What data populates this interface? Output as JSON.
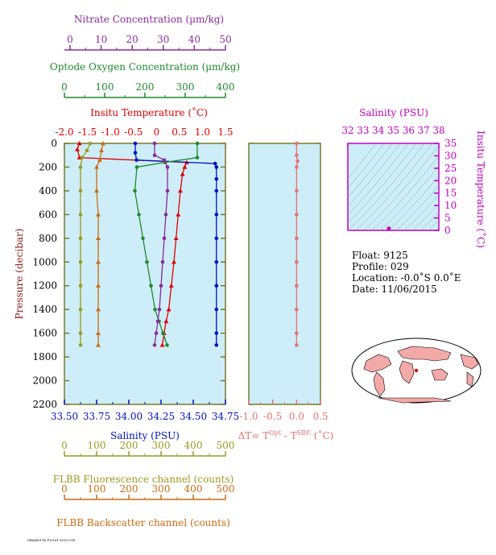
{
  "colors": {
    "nitrate": "#8b2a9c",
    "oxygen": "#1e8a2e",
    "temperature": "#e00000",
    "salinity": "#0010c0",
    "fluorescence": "#9a9a1c",
    "backscatter": "#cc6a10",
    "delta_t": "#e87070",
    "ts_axis": "#c000c0",
    "panel_bg": "#cdeef8",
    "frame": "#7a7a2a"
  },
  "axes": {
    "nitrate": {
      "title": "Nitrate Concentration (µm/kg)",
      "ticks": [
        "0",
        "10",
        "20",
        "30",
        "40",
        "50"
      ]
    },
    "oxygen": {
      "title": "Optode Oxygen Concentration (µm/kg)",
      "ticks": [
        "0",
        "100",
        "200",
        "300",
        "400"
      ]
    },
    "temperature": {
      "title": "Insitu Temperature (˚C)",
      "ticks": [
        "-2.0",
        "-1.5",
        "-1.0",
        "-0.5",
        "0",
        "0.5",
        "1.0",
        "1.5"
      ]
    },
    "salinity": {
      "title": "Salinity (PSU)",
      "ticks": [
        "33.50",
        "33.75",
        "34.00",
        "34.25",
        "34.50",
        "34.75"
      ]
    },
    "fluorescence": {
      "title": "FLBB Fluorescence channel (counts)",
      "ticks": [
        "0",
        "100",
        "200",
        "300",
        "400",
        "500"
      ]
    },
    "backscatter": {
      "title": "FLBB Backscatter channel (counts)",
      "ticks": [
        "0",
        "100",
        "200",
        "300",
        "400",
        "500"
      ]
    },
    "pressure": {
      "title": "Pressure (decibar)",
      "ticks": [
        "0",
        "200",
        "400",
        "600",
        "800",
        "1000",
        "1200",
        "1400",
        "1600",
        "1800",
        "2000",
        "2200"
      ]
    },
    "delta_t": {
      "title_main": "ΔT= T",
      "title_sup1": "Opt",
      "title_mid": " - T",
      "title_sup2": "SBE",
      "title_end": " (˚C)",
      "ticks": [
        "-1.0",
        "-0.5",
        "0.0",
        "0.5"
      ]
    },
    "ts_salinity": {
      "title": "Salinity (PSU)",
      "ticks": [
        "32",
        "33",
        "34",
        "35",
        "36",
        "37",
        "38"
      ]
    },
    "ts_temperature": {
      "title": "Insitu Temperature (˚C)",
      "ticks": [
        "0",
        "5",
        "10",
        "15",
        "20",
        "25",
        "30",
        "35"
      ]
    }
  },
  "info": {
    "float": "Float:  9125",
    "profile": "Profile:  029",
    "location": "Location:  -0.0˚S   0.0˚E",
    "date": "Date:  11/06/2015"
  },
  "footer": "MBARI/UW FLOAT SOCCOM",
  "chart_data": [
    {
      "type": "line",
      "title": "",
      "ylabel": "Pressure (decibar)",
      "ylim": [
        2200,
        0
      ],
      "series": [
        {
          "name": "Insitu Temperature (˚C)",
          "xlim": [
            -2.25,
            1.5
          ],
          "x": [
            -1.9,
            -1.95,
            -1.9,
            0.6,
            0.55,
            0.5,
            0.45,
            0.4,
            0.35,
            0.3,
            0.24,
            0.18,
            0.12,
            0.07,
            0.03
          ],
          "y": [
            0,
            50,
            120,
            160,
            200,
            260,
            400,
            600,
            800,
            1000,
            1200,
            1400,
            1500,
            1600,
            1700
          ]
        },
        {
          "name": "Salinity (PSU)",
          "xlim": [
            33.5,
            34.75
          ],
          "x": [
            34.05,
            34.05,
            34.06,
            34.67,
            34.68,
            34.68,
            34.68,
            34.68,
            34.68,
            34.68,
            34.68,
            34.68,
            34.68,
            34.68
          ],
          "y": [
            0,
            80,
            140,
            170,
            200,
            300,
            400,
            600,
            800,
            1000,
            1200,
            1400,
            1600,
            1700
          ]
        },
        {
          "name": "Optode Oxygen Concentration (µm/kg)",
          "xlim": [
            0,
            400
          ],
          "x": [
            330,
            330,
            250,
            180,
            175,
            185,
            195,
            205,
            215,
            225,
            235,
            245,
            255
          ],
          "y": [
            0,
            120,
            160,
            200,
            400,
            600,
            800,
            1000,
            1200,
            1400,
            1500,
            1600,
            1700
          ]
        },
        {
          "name": "Nitrate Concentration (µm/kg)",
          "xlim": [
            0,
            50
          ],
          "x": [
            28,
            28,
            31,
            32,
            32,
            31.5,
            31,
            30.5,
            30,
            29.5,
            29,
            28.5,
            28
          ],
          "y": [
            0,
            100,
            140,
            200,
            400,
            600,
            800,
            1000,
            1200,
            1400,
            1500,
            1600,
            1700
          ]
        },
        {
          "name": "FLBB Fluorescence channel (counts)",
          "xlim": [
            0,
            500
          ],
          "x": [
            80,
            70,
            55,
            50,
            50,
            50,
            50,
            50,
            50,
            50,
            50,
            50
          ],
          "y": [
            0,
            60,
            120,
            200,
            400,
            600,
            800,
            1000,
            1200,
            1400,
            1600,
            1700
          ]
        },
        {
          "name": "FLBB Backscatter channel (counts)",
          "xlim": [
            0,
            500
          ],
          "x": [
            120,
            115,
            110,
            100,
            100,
            105,
            105,
            105,
            105,
            105,
            105,
            105
          ],
          "y": [
            0,
            60,
            140,
            200,
            400,
            600,
            800,
            1000,
            1200,
            1400,
            1600,
            1700
          ]
        }
      ]
    },
    {
      "type": "line",
      "title": "",
      "xlim": [
        -1.0,
        0.5
      ],
      "ylim": [
        2200,
        0
      ],
      "series": [
        {
          "name": "ΔT",
          "x": [
            0.0,
            0.0,
            0.02,
            0.0,
            0.0,
            0.0,
            0.0,
            0.0,
            0.0,
            0.0,
            0.0,
            0.0
          ],
          "y": [
            0,
            100,
            150,
            200,
            400,
            600,
            800,
            1000,
            1200,
            1400,
            1600,
            1700
          ]
        }
      ]
    },
    {
      "type": "scatter",
      "title": "",
      "xlim": [
        32,
        38
      ],
      "ylim": [
        0,
        35
      ],
      "series": [
        {
          "name": "T-S",
          "x": [
            34.7
          ],
          "y": [
            0.1
          ]
        }
      ]
    }
  ]
}
